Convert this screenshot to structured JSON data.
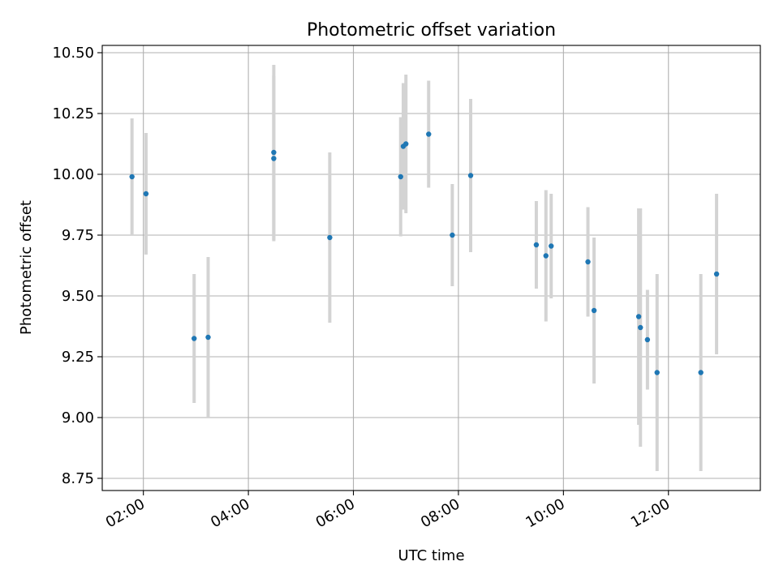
{
  "chart_data": {
    "type": "scatter",
    "title": "Photometric offset variation",
    "xlabel": "UTC time",
    "ylabel": "Photometric offset",
    "xlim": [
      "01:13",
      "13:45"
    ],
    "ylim": [
      8.7,
      10.53
    ],
    "x_ticks": [
      "02:00",
      "04:00",
      "06:00",
      "08:00",
      "10:00",
      "12:00"
    ],
    "y_ticks": [
      "8.75",
      "9.00",
      "9.25",
      "9.50",
      "9.75",
      "10.00",
      "10.25",
      "10.50"
    ],
    "grid": true,
    "colors": {
      "point": "#1f77b4",
      "errorbar": "#d3d3d3",
      "grid": "#b0b0b0"
    },
    "points": [
      {
        "x": "01:47",
        "y": 9.99,
        "err": 0.24
      },
      {
        "x": "02:03",
        "y": 9.92,
        "err": 0.25
      },
      {
        "x": "02:58",
        "y": 9.325,
        "err": 0.265
      },
      {
        "x": "03:14",
        "y": 9.33,
        "err": 0.33
      },
      {
        "x": "04:29",
        "y": 10.09,
        "err": 0.36
      },
      {
        "x": "04:29",
        "y": 10.065,
        "err": 0.34
      },
      {
        "x": "05:33",
        "y": 9.74,
        "err": 0.35
      },
      {
        "x": "06:54",
        "y": 9.99,
        "err": 0.245
      },
      {
        "x": "06:57",
        "y": 10.115,
        "err": 0.26
      },
      {
        "x": "07:00",
        "y": 10.125,
        "err": 0.285
      },
      {
        "x": "07:26",
        "y": 10.165,
        "err": 0.22
      },
      {
        "x": "07:53",
        "y": 9.75,
        "err": 0.21
      },
      {
        "x": "08:14",
        "y": 9.995,
        "err": 0.315
      },
      {
        "x": "09:29",
        "y": 9.71,
        "err": 0.18
      },
      {
        "x": "09:40",
        "y": 9.665,
        "err": 0.27
      },
      {
        "x": "09:46",
        "y": 9.705,
        "err": 0.215
      },
      {
        "x": "10:28",
        "y": 9.64,
        "err": 0.225
      },
      {
        "x": "10:35",
        "y": 9.44,
        "err": 0.3
      },
      {
        "x": "11:26",
        "y": 9.415,
        "err": 0.445
      },
      {
        "x": "11:28",
        "y": 9.37,
        "err": 0.49
      },
      {
        "x": "11:36",
        "y": 9.32,
        "err": 0.205
      },
      {
        "x": "11:47",
        "y": 9.185,
        "err": 0.405
      },
      {
        "x": "12:37",
        "y": 9.185,
        "err": 0.405
      },
      {
        "x": "12:55",
        "y": 9.59,
        "err": 0.33
      }
    ]
  }
}
